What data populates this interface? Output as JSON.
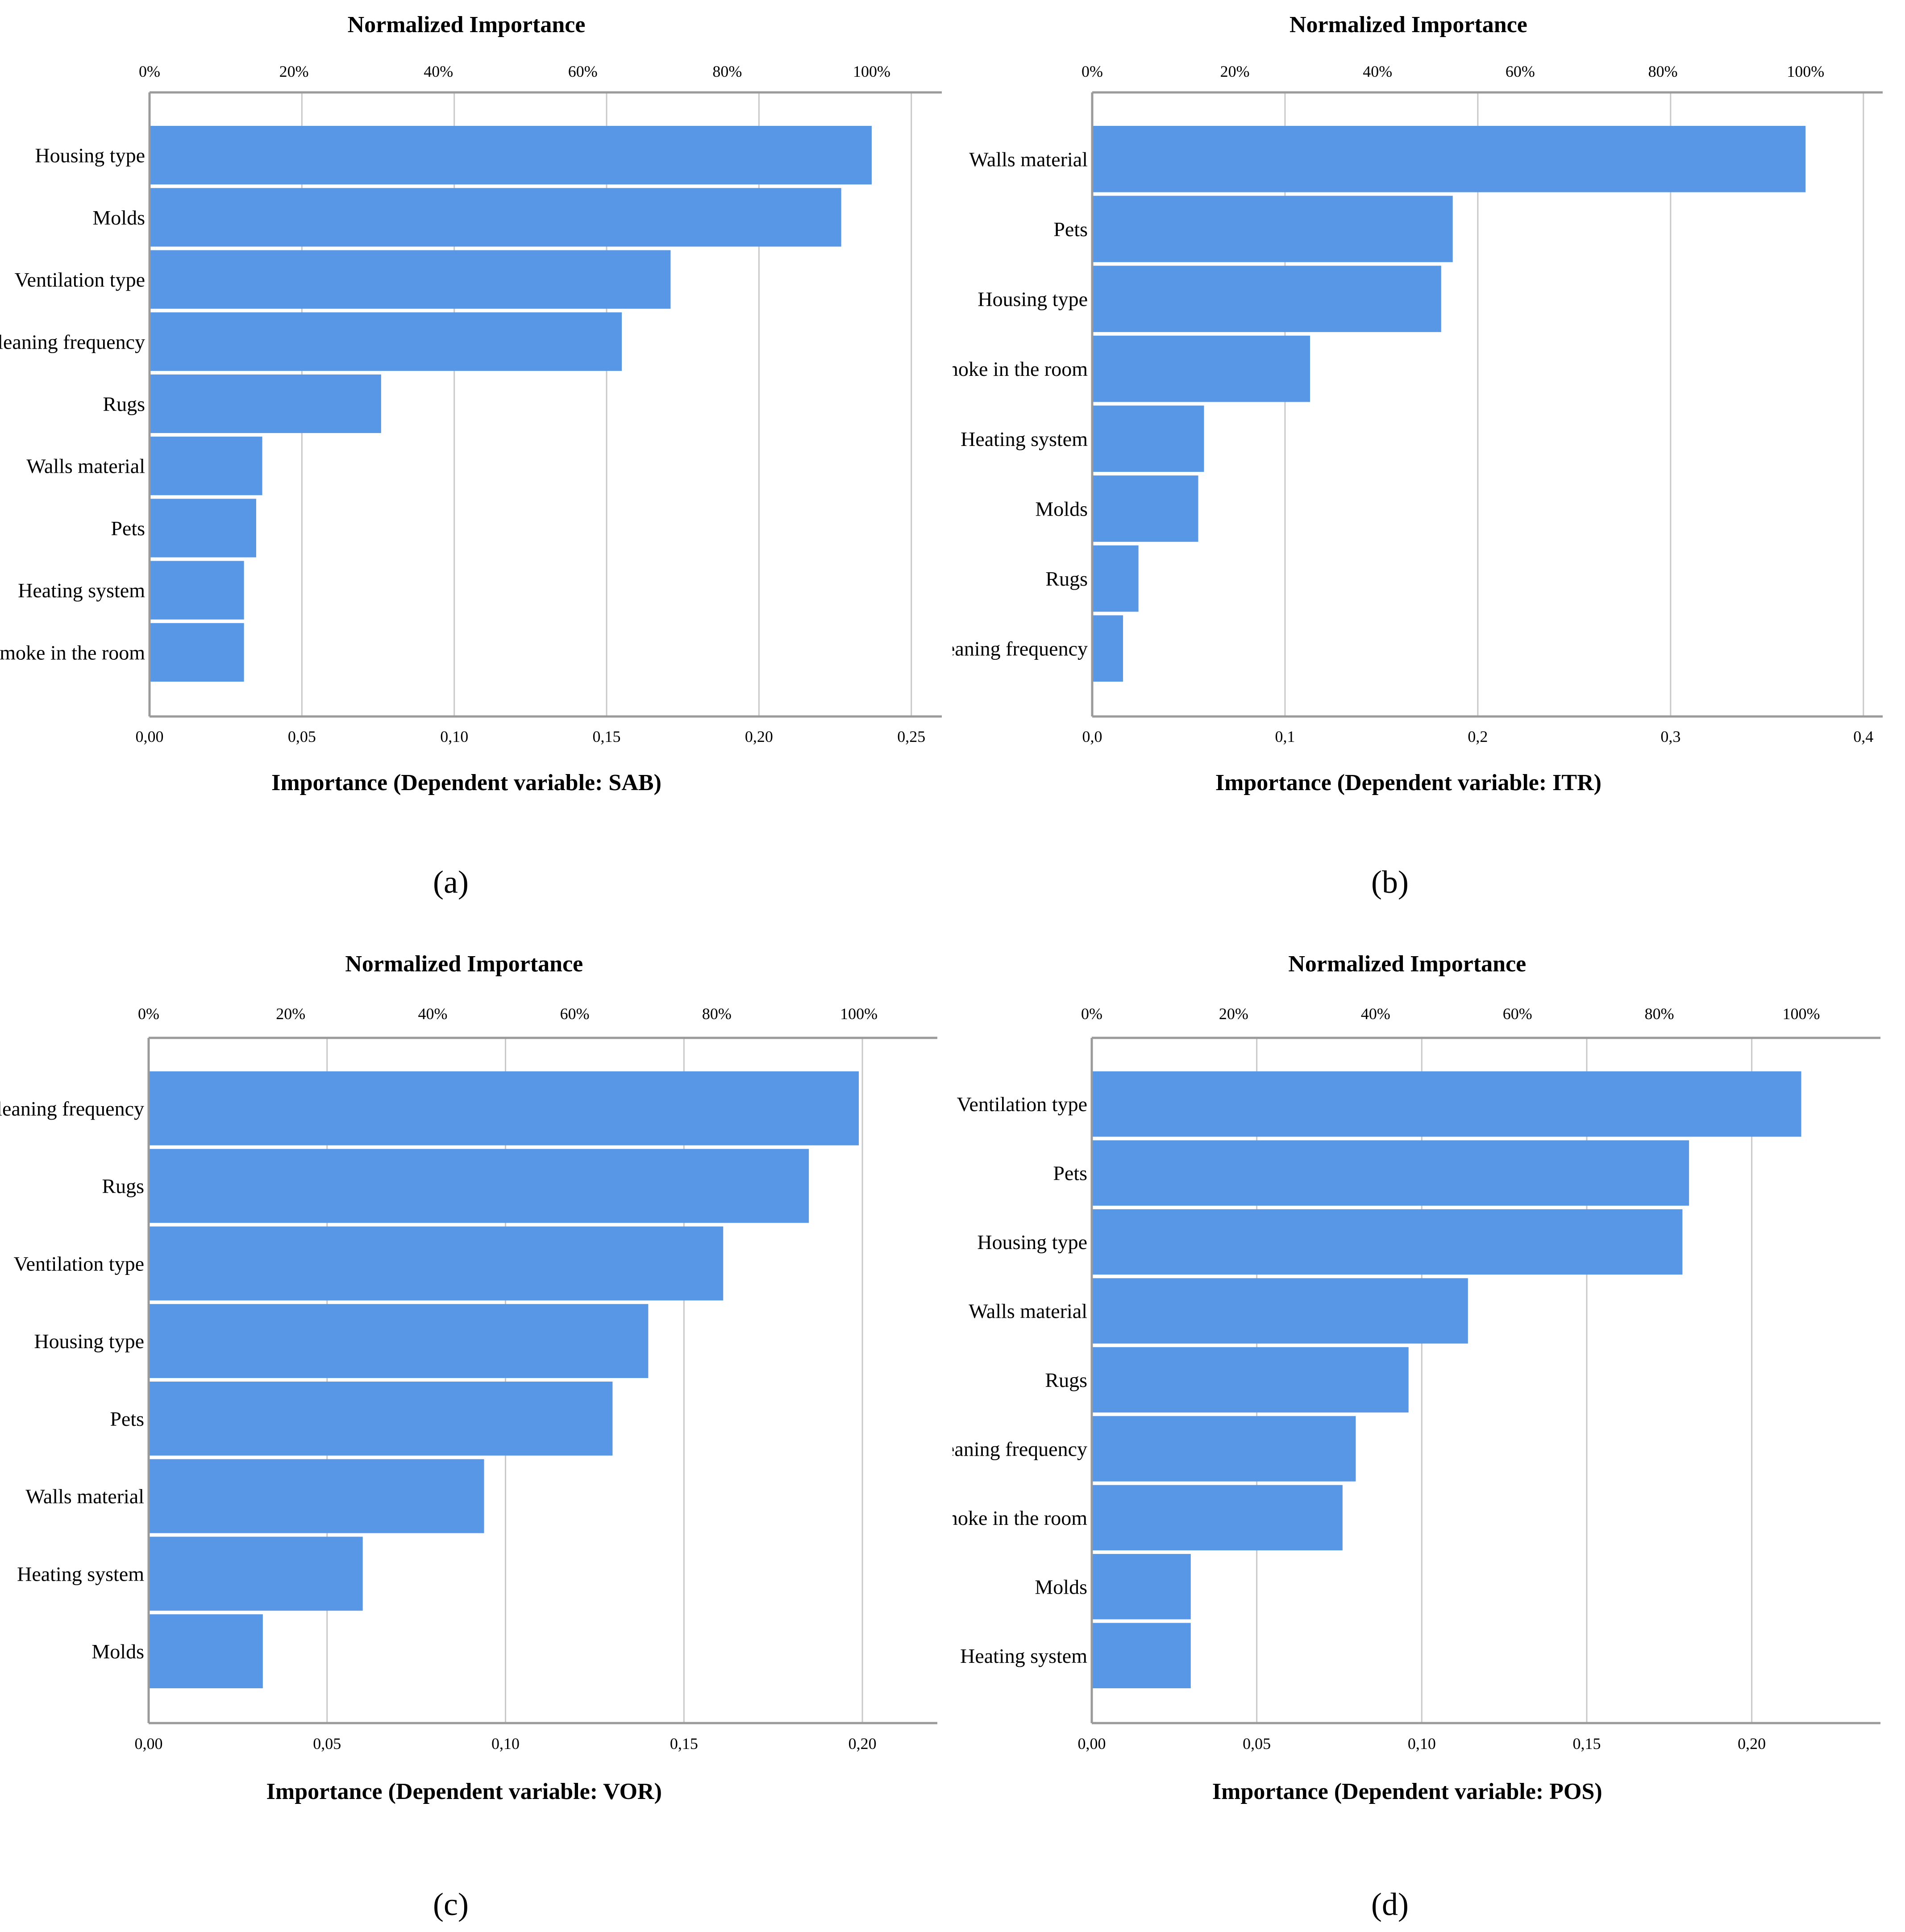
{
  "colors": {
    "bar": "#5797E6",
    "frame": "#9a9a9a",
    "grid": "#c8c8c8"
  },
  "chart_data": [
    {
      "panel_label": "(a)",
      "type": "bar",
      "orientation": "horizontal",
      "title": "Normalized Importance",
      "xlabel": "Importance (Dependent variable: SAB)",
      "categories": [
        "Housing type",
        "Molds",
        "Ventilation type",
        "Cleaning frequency",
        "Rugs",
        "Walls material",
        "Pets",
        "Heating system",
        "Smoke in the room"
      ],
      "values": [
        0.237,
        0.227,
        0.171,
        0.155,
        0.076,
        0.037,
        0.035,
        0.031,
        0.031
      ],
      "xlim": [
        0,
        0.26
      ],
      "bottom_ticks": [
        "0,00",
        "0,05",
        "0,10",
        "0,15",
        "0,20",
        "0,25"
      ],
      "bottom_tick_values": [
        0,
        0.05,
        0.1,
        0.15,
        0.2,
        0.25
      ],
      "top_ticks": [
        "0%",
        "20%",
        "40%",
        "60%",
        "80%",
        "100%"
      ],
      "top_max_value": 0.237
    },
    {
      "panel_label": "(b)",
      "type": "bar",
      "orientation": "horizontal",
      "title": "Normalized Importance",
      "xlabel": "Importance (Dependent variable: ITR)",
      "categories": [
        "Walls material",
        "Pets",
        "Housing type",
        "Smoke in the room",
        "Heating system",
        "Molds",
        "Rugs",
        "Cleaning frequency"
      ],
      "values": [
        0.37,
        0.187,
        0.181,
        0.113,
        0.058,
        0.055,
        0.024,
        0.016
      ],
      "xlim": [
        0,
        0.41
      ],
      "bottom_ticks": [
        "0,0",
        "0,1",
        "0,2",
        "0,3",
        "0,4"
      ],
      "bottom_tick_values": [
        0,
        0.1,
        0.2,
        0.3,
        0.4
      ],
      "top_ticks": [
        "0%",
        "20%",
        "40%",
        "60%",
        "80%",
        "100%"
      ],
      "top_max_value": 0.37
    },
    {
      "panel_label": "(c)",
      "type": "bar",
      "orientation": "horizontal",
      "title": "Normalized Importance",
      "xlabel": "Importance (Dependent variable: VOR)",
      "categories": [
        "Cleaning frequency",
        "Rugs",
        "Ventilation type",
        "Housing type",
        "Pets",
        "Walls material",
        "Heating system",
        "Molds"
      ],
      "values": [
        0.199,
        0.185,
        0.161,
        0.14,
        0.13,
        0.094,
        0.06,
        0.032
      ],
      "xlim": [
        0,
        0.221
      ],
      "bottom_ticks": [
        "0,00",
        "0,05",
        "0,10",
        "0,15",
        "0,20"
      ],
      "bottom_tick_values": [
        0,
        0.05,
        0.1,
        0.15,
        0.2
      ],
      "top_ticks": [
        "0%",
        "20%",
        "40%",
        "60%",
        "80%",
        "100%"
      ],
      "top_max_value": 0.199
    },
    {
      "panel_label": "(d)",
      "type": "bar",
      "orientation": "horizontal",
      "title": "Normalized Importance",
      "xlabel": "Importance (Dependent variable: POS)",
      "categories": [
        "Ventilation type",
        "Pets",
        "Housing type",
        "Walls material",
        "Rugs",
        "Cleaning frequency",
        "Smoke in the room",
        "Molds",
        "Heating system"
      ],
      "values": [
        0.215,
        0.181,
        0.179,
        0.114,
        0.096,
        0.08,
        0.076,
        0.03,
        0.03
      ],
      "xlim": [
        0,
        0.239
      ],
      "bottom_ticks": [
        "0,00",
        "0,05",
        "0,10",
        "0,15",
        "0,20"
      ],
      "bottom_tick_values": [
        0,
        0.05,
        0.1,
        0.15,
        0.2
      ],
      "top_ticks": [
        "0%",
        "20%",
        "40%",
        "60%",
        "80%",
        "100%"
      ],
      "top_max_value": 0.215
    }
  ]
}
